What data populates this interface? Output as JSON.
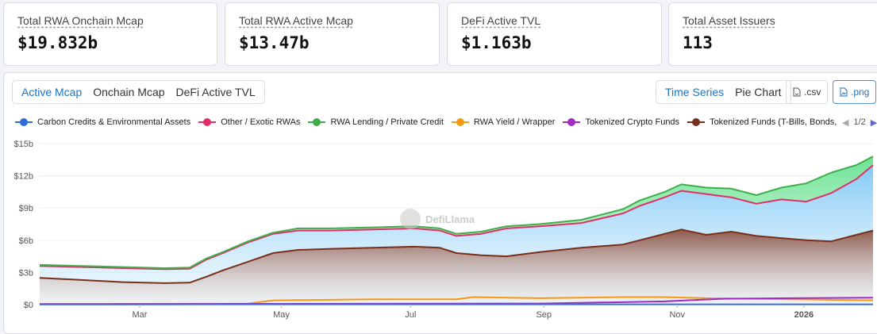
{
  "stats": [
    {
      "label": "Total RWA Onchain Mcap",
      "value": "$19.832b"
    },
    {
      "label": "Total RWA Active Mcap",
      "value": "$13.47b"
    },
    {
      "label": "DeFi Active TVL",
      "value": "$1.163b"
    },
    {
      "label": "Total Asset Issuers",
      "value": "113"
    }
  ],
  "tabs": [
    "Active Mcap",
    "Onchain Mcap",
    "DeFi Active TVL"
  ],
  "view_tabs": [
    "Time Series",
    "Pie Chart"
  ],
  "buttons": {
    "csv": ".csv",
    "png": ".png"
  },
  "legend": {
    "items": [
      {
        "name": "Carbon Credits & Environmental Assets",
        "color": "#2f6fd6"
      },
      {
        "name": "Other / Exotic RWAs",
        "color": "#e0306b"
      },
      {
        "name": "RWA Lending / Private Credit",
        "color": "#3fae49"
      },
      {
        "name": "RWA Yield / Wrapper",
        "color": "#f59a17"
      },
      {
        "name": "Tokenized Crypto Funds",
        "color": "#a12bc2"
      },
      {
        "name": "Tokenized Funds (T-Bills, Bonds, MMF",
        "color": "#7a2e1c"
      }
    ],
    "page": "1/2"
  },
  "watermark": "DefiLlama",
  "chart_data": {
    "type": "area",
    "title": "",
    "y_ticks": [
      "$0",
      "$3b",
      "$6b",
      "$9b",
      "$12b",
      "$15b"
    ],
    "ylim": [
      0,
      15
    ],
    "x_ticks": [
      {
        "label": "Mar",
        "t": 0.12
      },
      {
        "label": "May",
        "t": 0.29
      },
      {
        "label": "Jul",
        "t": 0.445
      },
      {
        "label": "Sep",
        "t": 0.605
      },
      {
        "label": "Nov",
        "t": 0.765
      },
      {
        "label": "2026",
        "t": 0.917
      }
    ],
    "series": [
      {
        "name": "Tokenized Funds (T-Bills, Bonds, MMF",
        "color": "#7a2e1c",
        "points": [
          [
            0,
            2.5
          ],
          [
            0.05,
            2.3
          ],
          [
            0.1,
            2.1
          ],
          [
            0.15,
            2.0
          ],
          [
            0.18,
            2.05
          ],
          [
            0.2,
            2.6
          ],
          [
            0.22,
            3.2
          ],
          [
            0.25,
            4.0
          ],
          [
            0.28,
            4.8
          ],
          [
            0.31,
            5.1
          ],
          [
            0.35,
            5.2
          ],
          [
            0.4,
            5.3
          ],
          [
            0.45,
            5.4
          ],
          [
            0.48,
            5.3
          ],
          [
            0.5,
            4.8
          ],
          [
            0.53,
            4.6
          ],
          [
            0.56,
            4.5
          ],
          [
            0.6,
            4.9
          ],
          [
            0.65,
            5.3
          ],
          [
            0.7,
            5.6
          ],
          [
            0.72,
            6.0
          ],
          [
            0.75,
            6.6
          ],
          [
            0.77,
            7.0
          ],
          [
            0.8,
            6.5
          ],
          [
            0.83,
            6.8
          ],
          [
            0.86,
            6.4
          ],
          [
            0.89,
            6.2
          ],
          [
            0.92,
            6.0
          ],
          [
            0.95,
            5.9
          ],
          [
            0.98,
            6.5
          ],
          [
            1.0,
            6.9
          ]
        ]
      },
      {
        "name": "Other / Exotic RWAs",
        "color": "#e0306b",
        "points": [
          [
            0,
            3.6
          ],
          [
            0.05,
            3.5
          ],
          [
            0.1,
            3.4
          ],
          [
            0.15,
            3.3
          ],
          [
            0.18,
            3.35
          ],
          [
            0.2,
            4.2
          ],
          [
            0.22,
            4.8
          ],
          [
            0.25,
            5.8
          ],
          [
            0.28,
            6.6
          ],
          [
            0.31,
            6.9
          ],
          [
            0.35,
            6.9
          ],
          [
            0.4,
            7.0
          ],
          [
            0.45,
            7.1
          ],
          [
            0.48,
            6.9
          ],
          [
            0.5,
            6.4
          ],
          [
            0.53,
            6.6
          ],
          [
            0.56,
            7.1
          ],
          [
            0.6,
            7.3
          ],
          [
            0.65,
            7.6
          ],
          [
            0.7,
            8.5
          ],
          [
            0.72,
            9.2
          ],
          [
            0.75,
            10.0
          ],
          [
            0.77,
            10.6
          ],
          [
            0.8,
            10.3
          ],
          [
            0.83,
            10.0
          ],
          [
            0.86,
            9.4
          ],
          [
            0.89,
            9.8
          ],
          [
            0.92,
            9.6
          ],
          [
            0.95,
            10.4
          ],
          [
            0.98,
            11.7
          ],
          [
            1.0,
            13.0
          ]
        ]
      },
      {
        "name": "RWA Lending / Private Credit",
        "color": "#3fae49",
        "points": [
          [
            0,
            3.7
          ],
          [
            0.05,
            3.6
          ],
          [
            0.1,
            3.5
          ],
          [
            0.15,
            3.4
          ],
          [
            0.18,
            3.45
          ],
          [
            0.2,
            4.3
          ],
          [
            0.22,
            4.9
          ],
          [
            0.25,
            5.9
          ],
          [
            0.28,
            6.7
          ],
          [
            0.31,
            7.1
          ],
          [
            0.35,
            7.1
          ],
          [
            0.4,
            7.2
          ],
          [
            0.45,
            7.3
          ],
          [
            0.48,
            7.1
          ],
          [
            0.5,
            6.6
          ],
          [
            0.53,
            6.8
          ],
          [
            0.56,
            7.3
          ],
          [
            0.6,
            7.5
          ],
          [
            0.65,
            7.9
          ],
          [
            0.7,
            8.9
          ],
          [
            0.72,
            9.7
          ],
          [
            0.75,
            10.5
          ],
          [
            0.77,
            11.2
          ],
          [
            0.8,
            10.9
          ],
          [
            0.83,
            10.8
          ],
          [
            0.86,
            10.2
          ],
          [
            0.89,
            10.9
          ],
          [
            0.92,
            11.3
          ],
          [
            0.95,
            12.3
          ],
          [
            0.98,
            13.0
          ],
          [
            1.0,
            13.8
          ]
        ]
      },
      {
        "name": "RWA Yield / Wrapper",
        "color": "#f59a17",
        "points": [
          [
            0,
            0.05
          ],
          [
            0.25,
            0.1
          ],
          [
            0.28,
            0.4
          ],
          [
            0.4,
            0.5
          ],
          [
            0.5,
            0.5
          ],
          [
            0.52,
            0.7
          ],
          [
            0.6,
            0.6
          ],
          [
            0.7,
            0.7
          ],
          [
            0.75,
            0.7
          ],
          [
            0.8,
            0.6
          ],
          [
            0.9,
            0.5
          ],
          [
            1.0,
            0.4
          ]
        ]
      },
      {
        "name": "Tokenized Crypto Funds",
        "color": "#a12bc2",
        "points": [
          [
            0,
            0.05
          ],
          [
            0.6,
            0.1
          ],
          [
            0.75,
            0.3
          ],
          [
            0.82,
            0.55
          ],
          [
            0.9,
            0.6
          ],
          [
            1.0,
            0.65
          ]
        ]
      },
      {
        "name": "Carbon Credits & Environmental Assets",
        "color": "#2f6fd6",
        "points": [
          [
            0,
            0.02
          ],
          [
            1.0,
            0.03
          ]
        ]
      }
    ]
  }
}
